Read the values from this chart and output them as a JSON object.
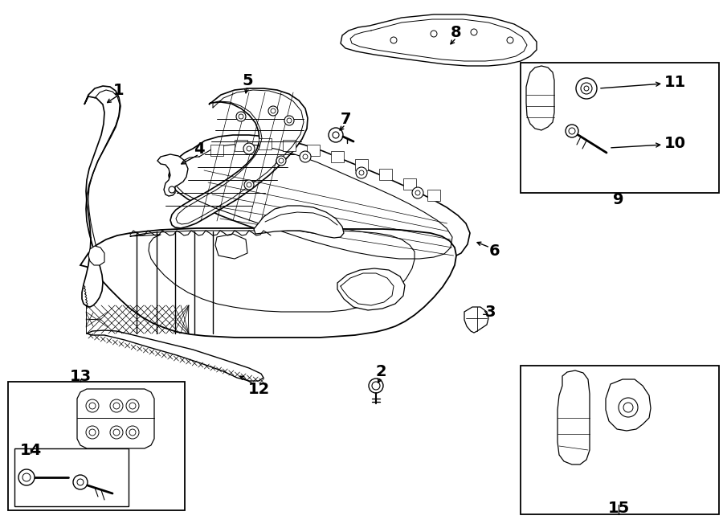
{
  "bg_color": "#ffffff",
  "line_color": "#000000",
  "label_color": "#000000",
  "label_fontsize": 14,
  "arrow_lw": 1.0
}
